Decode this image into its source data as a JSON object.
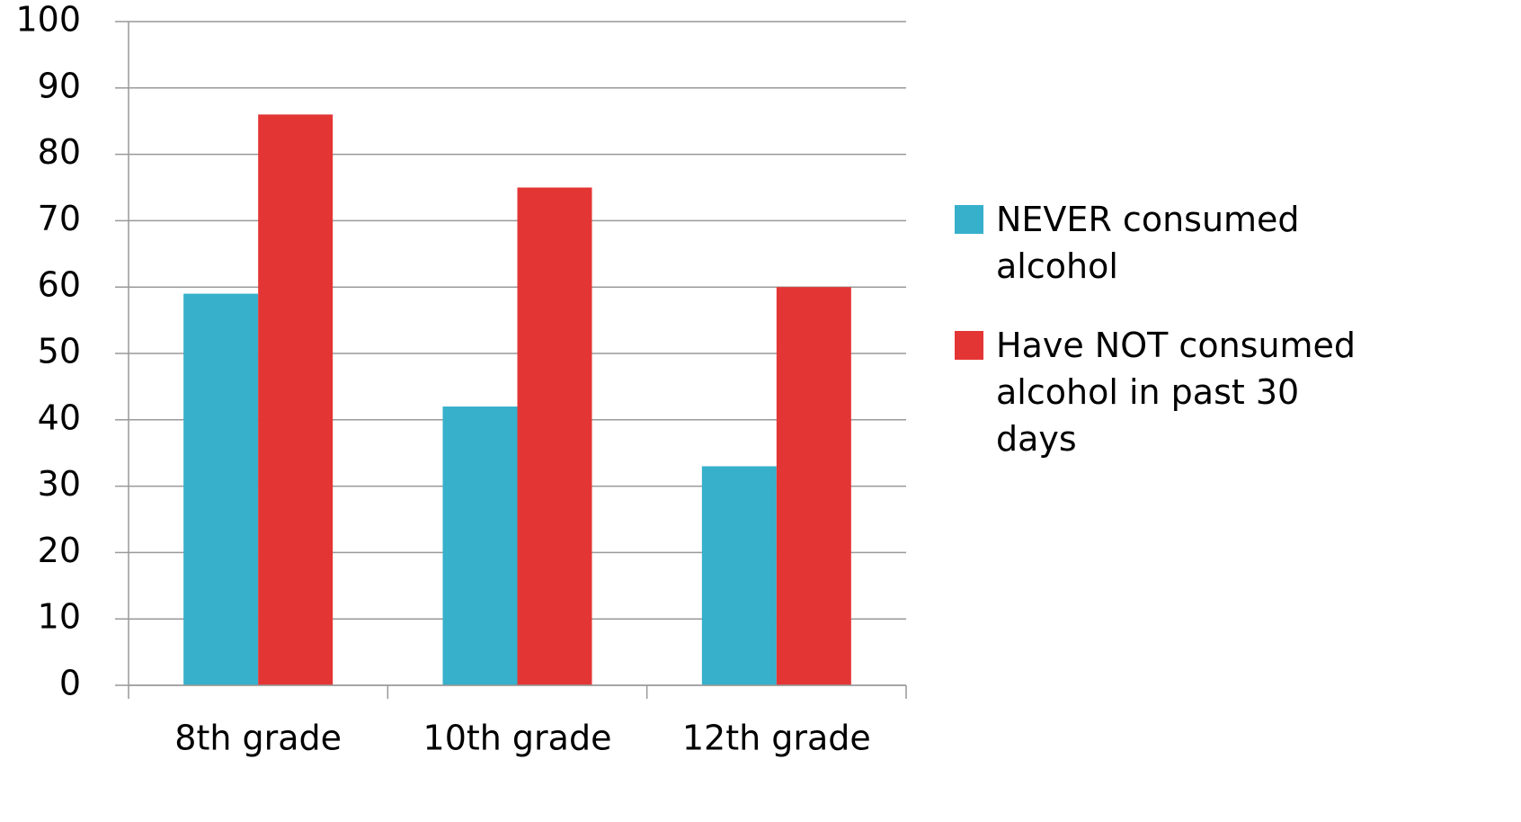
{
  "chart_data": {
    "type": "bar",
    "categories": [
      "8th grade",
      "10th grade",
      "12th grade"
    ],
    "series": [
      {
        "name": "NEVER consumed alcohol",
        "color": "#36b0cb",
        "values": [
          59,
          42,
          33
        ]
      },
      {
        "name": "Have NOT consumed alcohol in past 30 days",
        "color": "#e43535",
        "values": [
          86,
          75,
          60
        ]
      }
    ],
    "ylim": [
      0,
      100
    ],
    "yticks": [
      0,
      10,
      20,
      30,
      40,
      50,
      60,
      70,
      80,
      90,
      100
    ],
    "grid": true,
    "legend": "right"
  }
}
